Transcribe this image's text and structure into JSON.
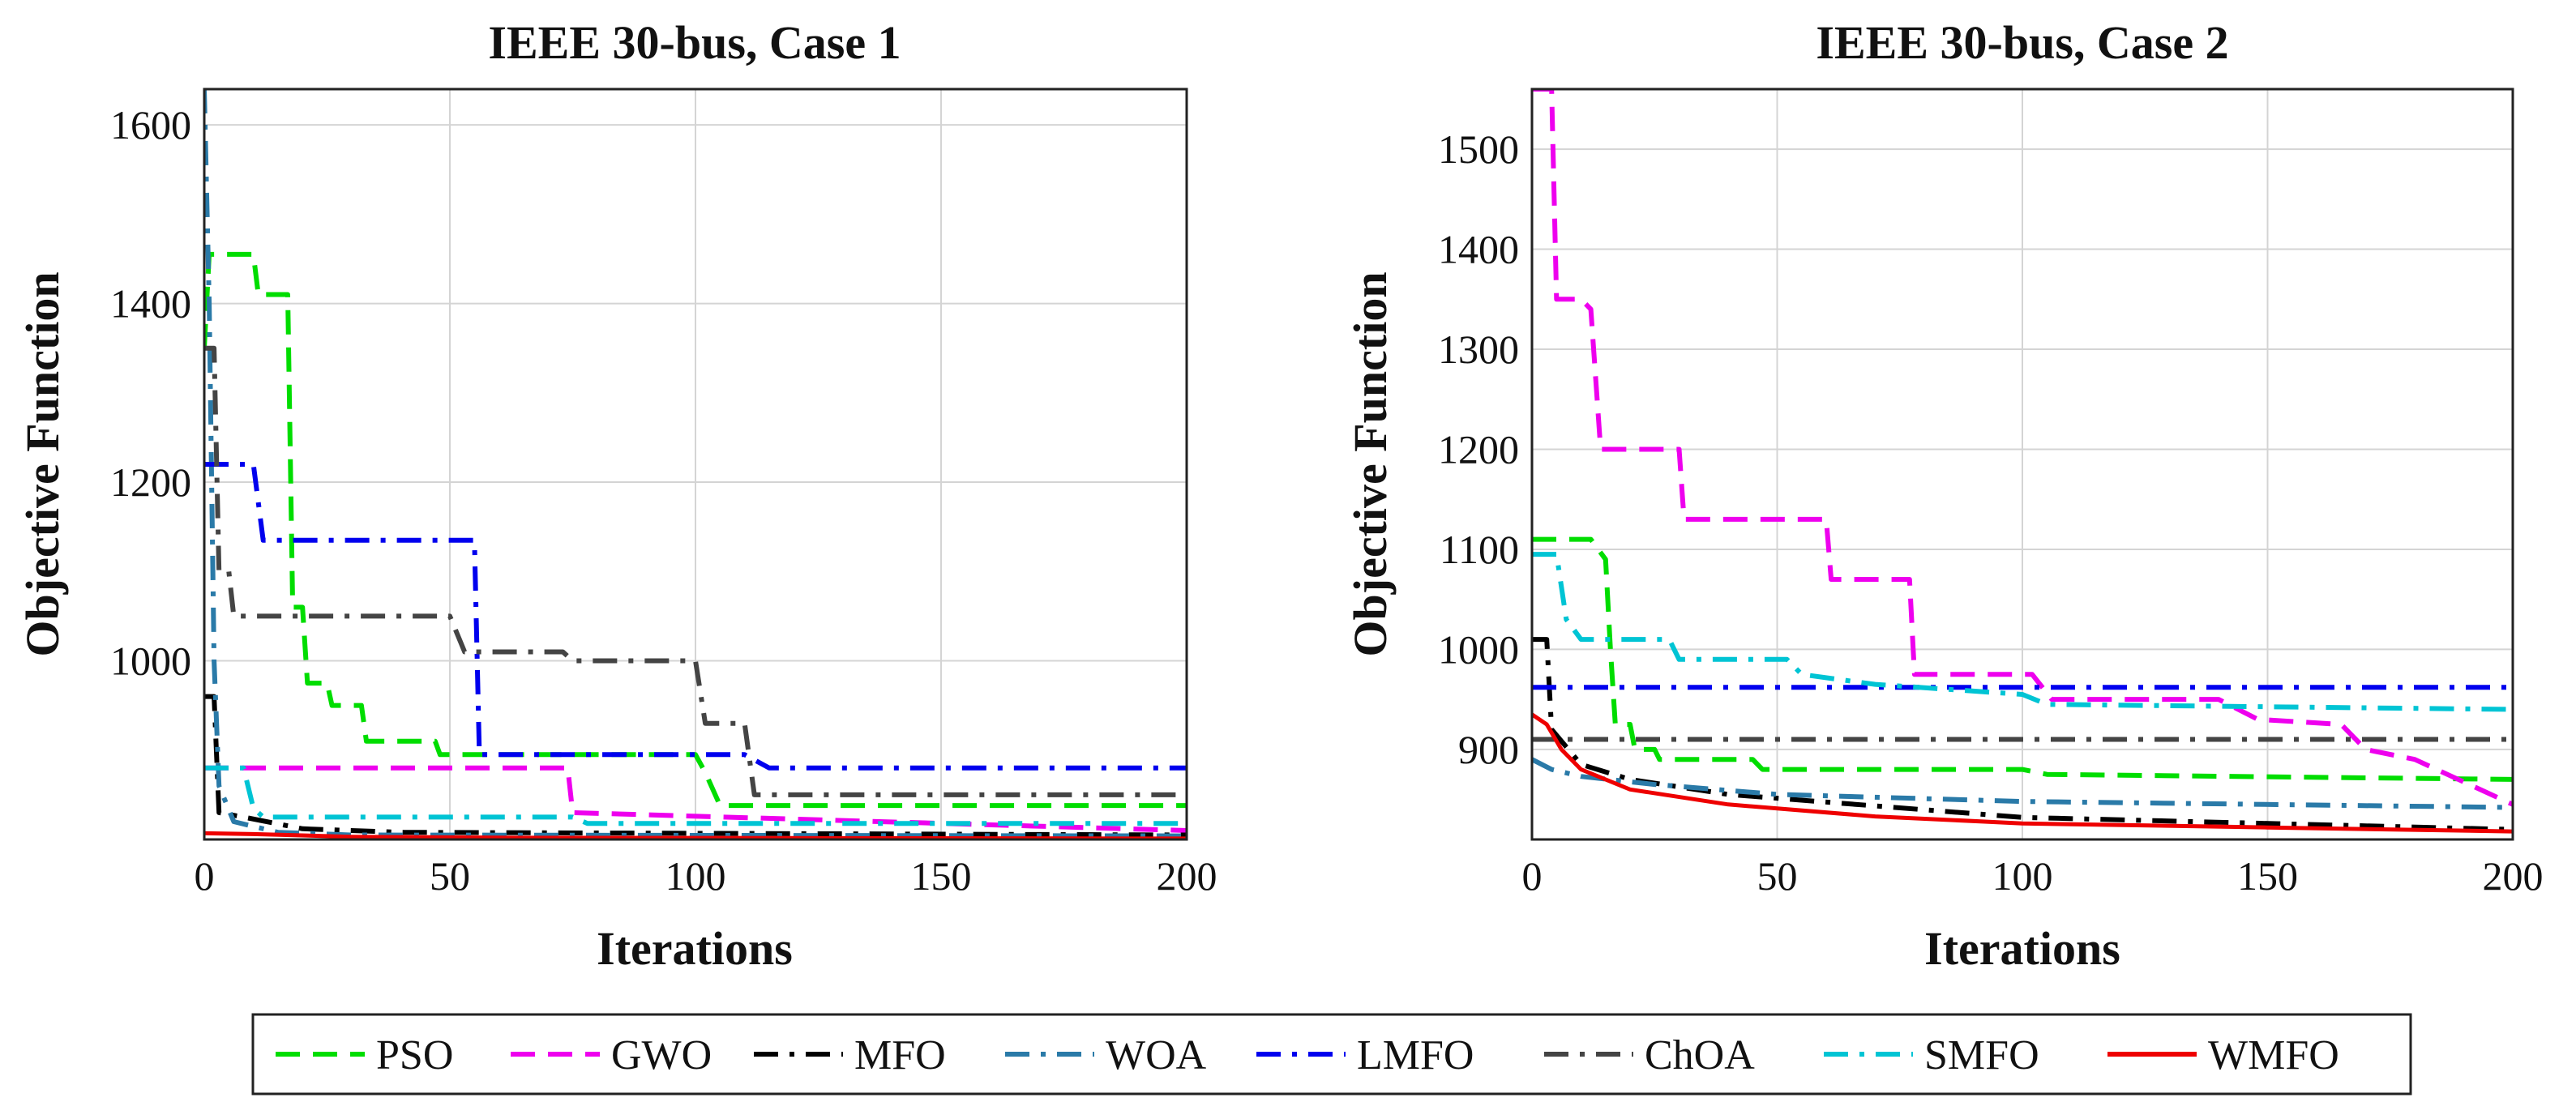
{
  "chart_data": [
    {
      "type": "line",
      "title": "IEEE 30-bus, Case 1",
      "xlabel": "Iterations",
      "ylabel": "Objective Function",
      "xlim": [
        0,
        200
      ],
      "ylim": [
        800,
        1640
      ],
      "xticks": [
        0,
        50,
        100,
        150,
        200
      ],
      "yticks": [
        1000,
        1200,
        1400,
        1600
      ],
      "ytick_labels": [
        "1000",
        "1200",
        "1400",
        "1600"
      ],
      "grid": true,
      "series": [
        {
          "name": "PSO",
          "points": [
            [
              0,
              1350
            ],
            [
              1,
              1455
            ],
            [
              10,
              1455
            ],
            [
              11,
              1410
            ],
            [
              17,
              1410
            ],
            [
              18,
              1060
            ],
            [
              20,
              1060
            ],
            [
              21,
              975
            ],
            [
              25,
              975
            ],
            [
              26,
              950
            ],
            [
              32,
              950
            ],
            [
              33,
              910
            ],
            [
              47,
              910
            ],
            [
              48,
              895
            ],
            [
              100,
              895
            ],
            [
              102,
              875
            ],
            [
              105,
              838
            ],
            [
              200,
              838
            ]
          ]
        },
        {
          "name": "GWO",
          "points": [
            [
              0,
              880
            ],
            [
              74,
              880
            ],
            [
              75,
              830
            ],
            [
              200,
              810
            ]
          ]
        },
        {
          "name": "MFO",
          "points": [
            [
              0,
              960
            ],
            [
              2,
              960
            ],
            [
              3,
              830
            ],
            [
              8,
              825
            ],
            [
              20,
              812
            ],
            [
              40,
              808
            ],
            [
              200,
              805
            ]
          ]
        },
        {
          "name": "WOA",
          "points": [
            [
              0,
              1640
            ],
            [
              1,
              1400
            ],
            [
              2,
              1000
            ],
            [
              3,
              860
            ],
            [
              6,
              820
            ],
            [
              15,
              808
            ],
            [
              30,
              805
            ],
            [
              200,
              804
            ]
          ]
        },
        {
          "name": "LMFO",
          "points": [
            [
              0,
              1220
            ],
            [
              10,
              1220
            ],
            [
              12,
              1135
            ],
            [
              55,
              1135
            ],
            [
              56,
              895
            ],
            [
              110,
              895
            ],
            [
              115,
              880
            ],
            [
              200,
              880
            ]
          ]
        },
        {
          "name": "ChOA",
          "points": [
            [
              0,
              1350
            ],
            [
              2,
              1350
            ],
            [
              3,
              1100
            ],
            [
              5,
              1100
            ],
            [
              6,
              1050
            ],
            [
              50,
              1050
            ],
            [
              53,
              1010
            ],
            [
              73,
              1010
            ],
            [
              75,
              1000
            ],
            [
              100,
              1000
            ],
            [
              102,
              930
            ],
            [
              110,
              930
            ],
            [
              112,
              850
            ],
            [
              200,
              850
            ]
          ]
        },
        {
          "name": "SMFO",
          "points": [
            [
              0,
              880
            ],
            [
              8,
              880
            ],
            [
              10,
              835
            ],
            [
              12,
              825
            ],
            [
              75,
              825
            ],
            [
              78,
              818
            ],
            [
              200,
              818
            ]
          ]
        },
        {
          "name": "WMFO",
          "points": [
            [
              0,
              807
            ],
            [
              10,
              806
            ],
            [
              30,
              803
            ],
            [
              60,
              802
            ],
            [
              200,
              801
            ]
          ]
        }
      ]
    },
    {
      "type": "line",
      "title": "IEEE 30-bus, Case 2",
      "xlabel": "Iterations",
      "ylabel": "Objective Function",
      "xlim": [
        0,
        200
      ],
      "ylim": [
        810,
        1560
      ],
      "xticks": [
        0,
        50,
        100,
        150,
        200
      ],
      "yticks": [
        900,
        1000,
        1100,
        1200,
        1300,
        1400,
        1500
      ],
      "ytick_labels": [
        "900",
        "1000",
        "1100",
        "1200",
        "1300",
        "1400",
        "1500"
      ],
      "grid": true,
      "series": [
        {
          "name": "PSO",
          "points": [
            [
              0,
              1110
            ],
            [
              12,
              1110
            ],
            [
              15,
              1090
            ],
            [
              16,
              1000
            ],
            [
              17,
              925
            ],
            [
              20,
              925
            ],
            [
              21,
              900
            ],
            [
              25,
              900
            ],
            [
              26,
              890
            ],
            [
              45,
              890
            ],
            [
              47,
              880
            ],
            [
              100,
              880
            ],
            [
              105,
              875
            ],
            [
              200,
              870
            ]
          ]
        },
        {
          "name": "GWO",
          "points": [
            [
              0,
              1560
            ],
            [
              4,
              1560
            ],
            [
              5,
              1350
            ],
            [
              10,
              1350
            ],
            [
              12,
              1340
            ],
            [
              14,
              1200
            ],
            [
              30,
              1200
            ],
            [
              31,
              1130
            ],
            [
              60,
              1130
            ],
            [
              61,
              1070
            ],
            [
              77,
              1070
            ],
            [
              78,
              975
            ],
            [
              102,
              975
            ],
            [
              106,
              950
            ],
            [
              140,
              950
            ],
            [
              148,
              930
            ],
            [
              165,
              925
            ],
            [
              170,
              900
            ],
            [
              180,
              890
            ],
            [
              200,
              845
            ]
          ]
        },
        {
          "name": "MFO",
          "points": [
            [
              0,
              1010
            ],
            [
              3,
              1010
            ],
            [
              4,
              920
            ],
            [
              10,
              885
            ],
            [
              20,
              870
            ],
            [
              40,
              855
            ],
            [
              100,
              832
            ],
            [
              200,
              820
            ]
          ]
        },
        {
          "name": "WOA",
          "points": [
            [
              0,
              890
            ],
            [
              4,
              880
            ],
            [
              10,
              873
            ],
            [
              25,
              865
            ],
            [
              50,
              855
            ],
            [
              100,
              848
            ],
            [
              200,
              842
            ]
          ]
        },
        {
          "name": "LMFO",
          "points": [
            [
              0,
              962
            ],
            [
              200,
              962
            ]
          ]
        },
        {
          "name": "ChOA",
          "points": [
            [
              0,
              910
            ],
            [
              200,
              910
            ]
          ]
        },
        {
          "name": "SMFO",
          "points": [
            [
              0,
              1095
            ],
            [
              5,
              1095
            ],
            [
              7,
              1030
            ],
            [
              10,
              1010
            ],
            [
              28,
              1010
            ],
            [
              30,
              990
            ],
            [
              52,
              990
            ],
            [
              55,
              975
            ],
            [
              70,
              965
            ],
            [
              100,
              955
            ],
            [
              105,
              945
            ],
            [
              200,
              940
            ]
          ]
        },
        {
          "name": "WMFO",
          "points": [
            [
              0,
              935
            ],
            [
              3,
              925
            ],
            [
              6,
              900
            ],
            [
              10,
              880
            ],
            [
              20,
              860
            ],
            [
              40,
              845
            ],
            [
              70,
              833
            ],
            [
              100,
              826
            ],
            [
              150,
              822
            ],
            [
              200,
              818
            ]
          ]
        }
      ]
    }
  ],
  "legend": [
    {
      "name": "PSO",
      "color": "#00dd00",
      "dash": "dash"
    },
    {
      "name": "GWO",
      "color": "#ee00ee",
      "dash": "dash"
    },
    {
      "name": "MFO",
      "color": "#000000",
      "dash": "dashdot"
    },
    {
      "name": "WOA",
      "color": "#2a7aa8",
      "dash": "dashdot"
    },
    {
      "name": "LMFO",
      "color": "#0000ee",
      "dash": "dashdot"
    },
    {
      "name": "ChOA",
      "color": "#444444",
      "dash": "dashdot"
    },
    {
      "name": "SMFO",
      "color": "#00c4d4",
      "dash": "dashdot"
    },
    {
      "name": "WMFO",
      "color": "#ee0000",
      "dash": "solid"
    }
  ]
}
